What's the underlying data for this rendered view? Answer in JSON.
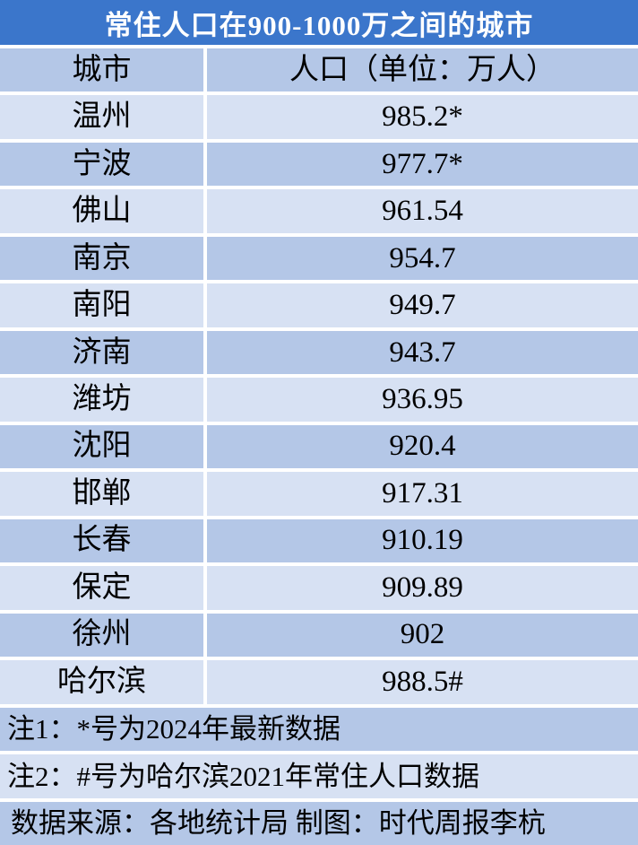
{
  "page": {
    "title": "常住人口在900-1000万之间的城市"
  },
  "table": {
    "header": {
      "city": "城市",
      "population": "人口（单位：万人）"
    },
    "rows": [
      {
        "city": "温州",
        "population": "985.2*"
      },
      {
        "city": "宁波",
        "population": "977.7*"
      },
      {
        "city": "佛山",
        "population": "961.54"
      },
      {
        "city": "南京",
        "population": "954.7"
      },
      {
        "city": "南阳",
        "population": "949.7"
      },
      {
        "city": "济南",
        "population": "943.7"
      },
      {
        "city": "潍坊",
        "population": "936.95"
      },
      {
        "city": "沈阳",
        "population": "920.4"
      },
      {
        "city": "邯郸",
        "population": "917.31"
      },
      {
        "city": "长春",
        "population": "910.19"
      },
      {
        "city": "保定",
        "population": "909.89"
      },
      {
        "city": "徐州",
        "population": "902"
      },
      {
        "city": "哈尔滨",
        "population": "988.5#"
      }
    ]
  },
  "notes": {
    "note1": "注1：*号为2024年最新数据",
    "note2": "注2：#号为哈尔滨2021年常住人口数据"
  },
  "source": "数据来源：各地统计局 制图：时代周报李杭",
  "colors": {
    "title_bg": "#3B76CB",
    "title_text": "#FFFFFF",
    "row_medium": "#B4C7E7",
    "row_light": "#D7E1F3",
    "text": "#000000",
    "gap": "#FFFFFF"
  },
  "chart_data": {
    "type": "table",
    "title": "常住人口在900-1000万之间的城市",
    "columns": [
      "城市",
      "人口（单位：万人）"
    ],
    "rows": [
      {
        "city": "温州",
        "population": 985.2,
        "marker": "*"
      },
      {
        "city": "宁波",
        "population": 977.7,
        "marker": "*"
      },
      {
        "city": "佛山",
        "population": 961.54,
        "marker": ""
      },
      {
        "city": "南京",
        "population": 954.7,
        "marker": ""
      },
      {
        "city": "南阳",
        "population": 949.7,
        "marker": ""
      },
      {
        "city": "济南",
        "population": 943.7,
        "marker": ""
      },
      {
        "city": "潍坊",
        "population": 936.95,
        "marker": ""
      },
      {
        "city": "沈阳",
        "population": 920.4,
        "marker": ""
      },
      {
        "city": "邯郸",
        "population": 917.31,
        "marker": ""
      },
      {
        "city": "长春",
        "population": 910.19,
        "marker": ""
      },
      {
        "city": "保定",
        "population": 909.89,
        "marker": ""
      },
      {
        "city": "徐州",
        "population": 902,
        "marker": ""
      },
      {
        "city": "哈尔滨",
        "population": 988.5,
        "marker": "#"
      }
    ],
    "footnotes": [
      "注1：*号为2024年最新数据",
      "注2：#号为哈尔滨2021年常住人口数据"
    ],
    "source": "数据来源：各地统计局 制图：时代周报李杭"
  }
}
